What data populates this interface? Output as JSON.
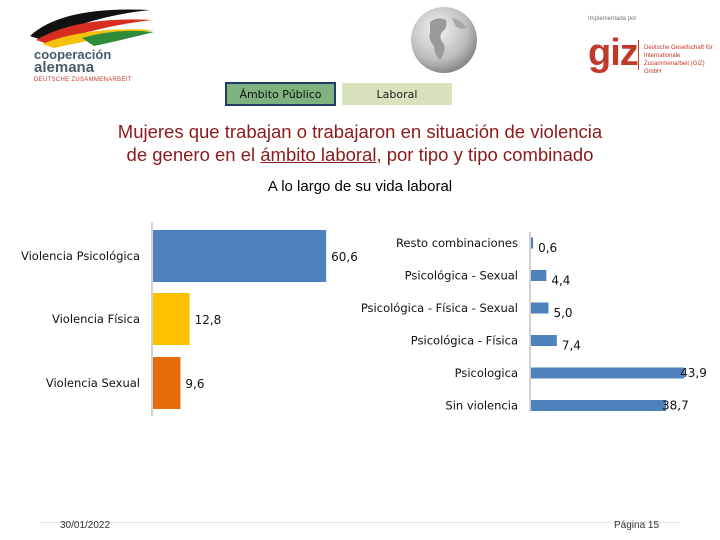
{
  "header": {
    "logo_left": {
      "line1": "cooperación",
      "line2": "alemana",
      "line3": "DEUTSCHE ZUSAMMENARBEIT"
    },
    "logo_right": {
      "implemented_by": "Implementada por",
      "brand": "giz",
      "name": "Deutsche Gesellschaft für Internationale Zusammenarbeit (GIZ) GmbH"
    }
  },
  "tabs": [
    {
      "label": "Ámbito Público",
      "active": true
    },
    {
      "label": "Laboral",
      "active": false
    }
  ],
  "title": {
    "line1": "Mujeres que trabajan  o trabajaron en situación de violencia",
    "line2_before": "de genero en el ",
    "line2_underlined": "ámbito laboral",
    "line2_after": ", por tipo y tipo combinado"
  },
  "subtitle": "A lo largo de su vida laboral",
  "colors": {
    "blue": "#4f81bd",
    "yellow": "#ffc000",
    "orange": "#e46c0a",
    "title": "#8b1a1a",
    "tab_active": "#7fb27f",
    "tab_inactive": "#d6e3bc",
    "giz_red": "#c0392b"
  },
  "chart_data": [
    {
      "type": "bar",
      "orientation": "horizontal",
      "title": "",
      "categories": [
        "Violencia Psicológica",
        "Violencia Física",
        "Violencia Sexual"
      ],
      "values": [
        60.6,
        12.8,
        9.6
      ],
      "value_labels": [
        "60,6",
        "12,8",
        "9,6"
      ],
      "bar_colors": [
        "#4f81bd",
        "#ffc000",
        "#e46c0a"
      ],
      "xlim": [
        0,
        70
      ]
    },
    {
      "type": "bar",
      "orientation": "horizontal",
      "title": "",
      "categories": [
        "Resto combinaciones",
        "Psicológica - Sexual",
        "Psicológica - Física - Sexual",
        "Psicológica - Física",
        "Psicologica",
        "Sin violencia"
      ],
      "values": [
        0.6,
        4.4,
        5.0,
        7.4,
        43.9,
        38.7
      ],
      "value_labels": [
        "0,6",
        "4,4",
        "5,0",
        "7,4",
        "43,9",
        "38,7"
      ],
      "bar_color": "#4f81bd",
      "xlim": [
        0,
        45
      ]
    }
  ],
  "footer": {
    "date": "30/01/2022",
    "page": "Página 15"
  }
}
